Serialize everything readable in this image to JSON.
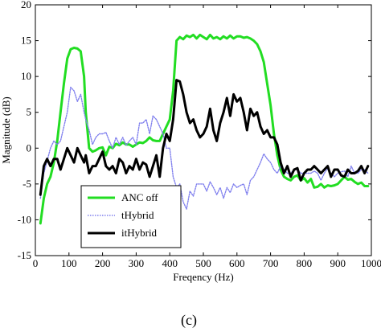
{
  "caption": "(c)",
  "chart_data": {
    "type": "line",
    "xlabel": "Freqency (Hz)",
    "ylabel": "Magnitude (dB)",
    "xlim": [
      0,
      1000
    ],
    "ylim": [
      -15,
      20
    ],
    "xticks": [
      0,
      100,
      200,
      300,
      400,
      500,
      600,
      700,
      800,
      900,
      1000
    ],
    "xtick_labels": [
      "0",
      "100",
      "200",
      "300",
      "400",
      "500",
      "600",
      "700",
      "800",
      "900",
      "1000"
    ],
    "yticks": [
      -15,
      -10,
      -5,
      0,
      5,
      10,
      15,
      20
    ],
    "ytick_labels": [
      "-15",
      "-10",
      "-5",
      "0",
      "5",
      "10",
      "15",
      "20"
    ],
    "grid": false,
    "legend_position": "lower-left",
    "series": [
      {
        "name": "ANC off",
        "color": "#22dd22",
        "style": "solid",
        "x": [
          15,
          25,
          35,
          45,
          55,
          65,
          75,
          85,
          95,
          105,
          115,
          125,
          135,
          145,
          150,
          160,
          170,
          180,
          190,
          200,
          210,
          220,
          230,
          240,
          250,
          260,
          270,
          280,
          290,
          300,
          310,
          320,
          330,
          340,
          350,
          360,
          370,
          380,
          390,
          400,
          410,
          420,
          430,
          440,
          450,
          460,
          470,
          480,
          490,
          500,
          510,
          520,
          530,
          540,
          550,
          560,
          570,
          580,
          590,
          600,
          610,
          620,
          630,
          640,
          650,
          660,
          670,
          680,
          690,
          700,
          710,
          720,
          730,
          740,
          750,
          760,
          770,
          780,
          790,
          800,
          810,
          820,
          830,
          840,
          850,
          860,
          870,
          880,
          890,
          900,
          910,
          920,
          930,
          940,
          950,
          960,
          970,
          980,
          990
        ],
        "y": [
          -10.5,
          -7,
          -5,
          -4,
          -2,
          1,
          5,
          9,
          12.5,
          13.8,
          14,
          13.9,
          13.5,
          10,
          5,
          0,
          -0.5,
          -0.3,
          0,
          0.1,
          -1,
          0.2,
          0,
          0.6,
          0.4,
          0.8,
          0.5,
          0.5,
          0.2,
          0.5,
          0.8,
          0.7,
          1,
          1.5,
          1.1,
          1,
          1,
          2,
          3,
          4,
          8,
          15,
          15.5,
          15.2,
          15.7,
          15.5,
          15.8,
          15.3,
          15.8,
          15.5,
          15.2,
          15.8,
          15.3,
          15.5,
          15.2,
          15.6,
          15.3,
          15.7,
          15.3,
          15.6,
          15.6,
          15.4,
          15.5,
          15.3,
          15,
          14.5,
          13.5,
          12,
          9,
          6,
          2,
          -1,
          -3,
          -4,
          -4.3,
          -4.5,
          -4,
          -3.8,
          -4.5,
          -4.2,
          -4.8,
          -4.3,
          -5.5,
          -5.4,
          -5,
          -5.5,
          -5.2,
          -5.3,
          -5.2,
          -5,
          -4.5,
          -4,
          -4.4,
          -4.3,
          -4.7,
          -5,
          -4.8,
          -5.3,
          -5.3
        ]
      },
      {
        "name": "tHybrid",
        "color": "#8080ee",
        "style": "dotted",
        "x": [
          15,
          25,
          35,
          45,
          55,
          65,
          75,
          85,
          95,
          105,
          115,
          125,
          135,
          145,
          150,
          160,
          170,
          180,
          190,
          200,
          210,
          220,
          230,
          240,
          250,
          260,
          270,
          280,
          290,
          300,
          310,
          320,
          330,
          340,
          350,
          360,
          370,
          380,
          390,
          400,
          410,
          420,
          430,
          440,
          450,
          460,
          470,
          480,
          490,
          500,
          510,
          520,
          530,
          540,
          550,
          560,
          570,
          580,
          590,
          600,
          610,
          620,
          630,
          640,
          650,
          660,
          670,
          680,
          690,
          700,
          710,
          720,
          730,
          740,
          750,
          760,
          770,
          780,
          790,
          800,
          810,
          820,
          830,
          840,
          850,
          860,
          870,
          880,
          890,
          900,
          910,
          920,
          930,
          940,
          950,
          960,
          970,
          980,
          990
        ],
        "y": [
          -7,
          -3.5,
          -1.8,
          0,
          1,
          0.5,
          1,
          3,
          5,
          8.5,
          8,
          6.5,
          7.5,
          5,
          4,
          2.5,
          0.5,
          1.5,
          2,
          2,
          2.2,
          1,
          0,
          1.5,
          0.5,
          1.5,
          0.4,
          1,
          1.5,
          0.5,
          3.5,
          3.5,
          4,
          2,
          4.5,
          4,
          3,
          2,
          0,
          0,
          -4,
          -5.5,
          -5,
          -7.5,
          -8.5,
          -6,
          -6.7,
          -5,
          -5,
          -5,
          -6,
          -4.7,
          -5.5,
          -6.5,
          -5.5,
          -7,
          -5.5,
          -6.2,
          -5,
          -5.5,
          -5.2,
          -5,
          -6.5,
          -4.5,
          -4,
          -3,
          -2,
          -0.8,
          -1.5,
          -2,
          -3,
          -3.5,
          -2.5,
          -3,
          -3.5,
          -3.5,
          -3,
          -3,
          -3.5,
          -3.5,
          -3.5,
          -3.5,
          -3.2,
          -3.5,
          -4.5,
          -3.5,
          -2.8,
          -3.5,
          -4,
          -3.5,
          -3.3,
          -3.2,
          -4,
          -2.5,
          -3.5,
          -3.5,
          -3,
          -3,
          -3.5
        ]
      },
      {
        "name": "itHybrid",
        "color": "#000000",
        "style": "solid",
        "x": [
          15,
          25,
          35,
          45,
          55,
          65,
          75,
          85,
          95,
          105,
          115,
          125,
          135,
          145,
          150,
          160,
          170,
          180,
          190,
          200,
          210,
          220,
          230,
          240,
          250,
          260,
          270,
          280,
          290,
          300,
          310,
          320,
          330,
          340,
          350,
          360,
          370,
          380,
          390,
          400,
          410,
          420,
          430,
          440,
          450,
          460,
          470,
          480,
          490,
          500,
          510,
          520,
          530,
          540,
          550,
          560,
          570,
          580,
          590,
          600,
          610,
          620,
          630,
          640,
          650,
          660,
          670,
          680,
          690,
          700,
          710,
          720,
          730,
          740,
          750,
          760,
          770,
          780,
          790,
          800,
          810,
          820,
          830,
          840,
          850,
          860,
          870,
          880,
          890,
          900,
          910,
          920,
          930,
          940,
          950,
          960,
          970,
          980,
          990
        ],
        "y": [
          -6.5,
          -2.5,
          -1.5,
          -2.5,
          -1.5,
          -1.5,
          -3,
          -1.5,
          0,
          -1,
          -2,
          0,
          -1,
          -2,
          -1,
          -3.5,
          -2.5,
          -2.5,
          -1.5,
          -0.5,
          -2.5,
          -3,
          -2.5,
          -3.5,
          -1.5,
          -2,
          -3.5,
          -2.5,
          -3,
          -1.5,
          -3,
          -2,
          -2.3,
          -4,
          -2.5,
          -1,
          -4,
          0,
          2,
          1,
          4,
          9.5,
          9.3,
          7.5,
          5,
          3.5,
          4,
          2.5,
          1.5,
          2,
          3,
          5.5,
          2.5,
          1,
          3.5,
          5,
          7,
          4.5,
          7.5,
          6.5,
          7,
          5,
          2.5,
          5.5,
          4.5,
          5,
          3,
          2,
          2.5,
          1.5,
          1.5,
          0.5,
          -2,
          -3.5,
          -2.5,
          -4,
          -3,
          -2.8,
          -4.5,
          -3.5,
          -3,
          -3,
          -2.5,
          -3,
          -3.5,
          -3,
          -2.5,
          -4,
          -3,
          -3,
          -3.8,
          -4,
          -3,
          -3.5,
          -3.5,
          -3.2,
          -2.5,
          -3.5,
          -2.5
        ]
      }
    ]
  }
}
